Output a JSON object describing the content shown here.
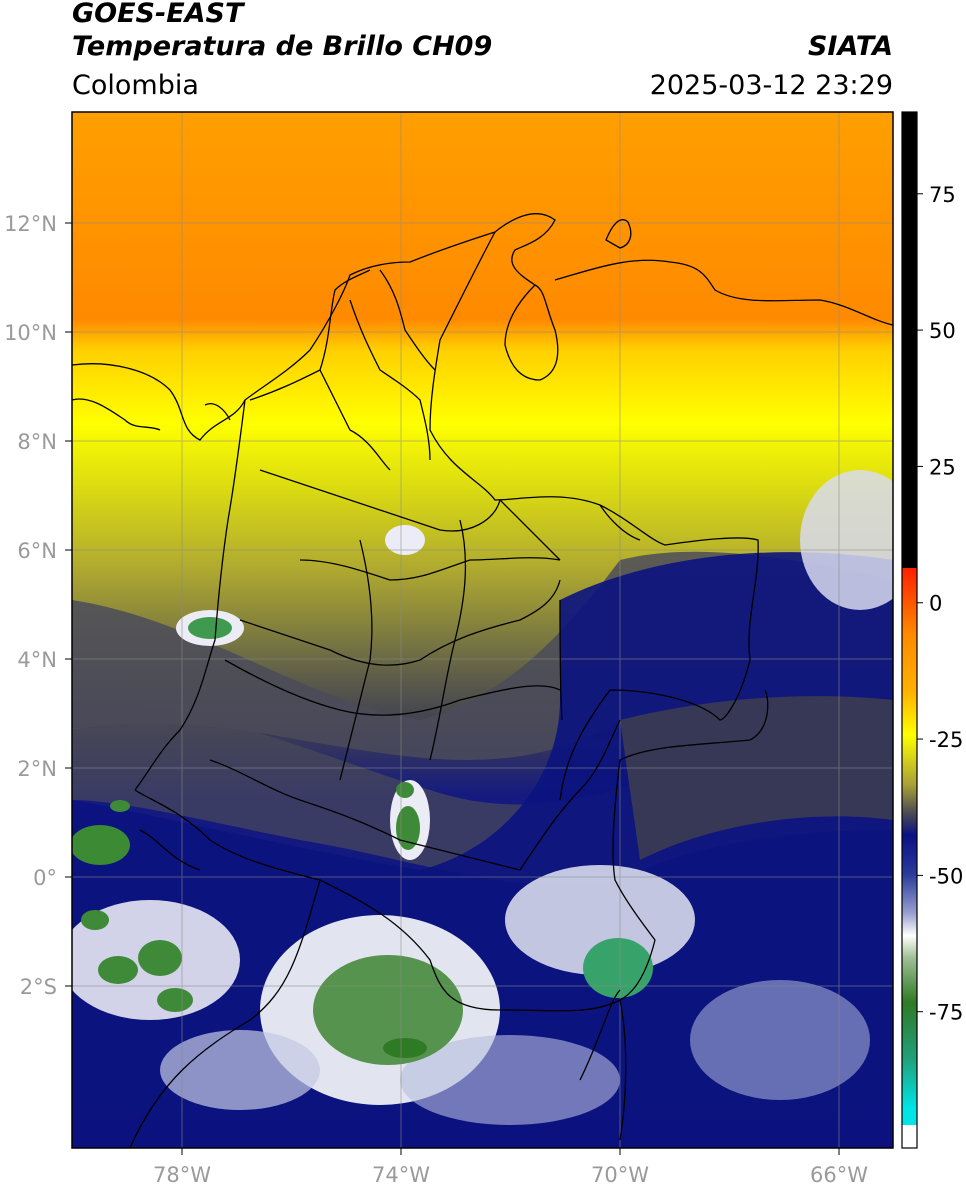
{
  "header": {
    "satellite": "GOES-EAST",
    "product": "Temperatura de Brillo CH09",
    "agency": "SIATA",
    "region": "Colombia",
    "datetime": "2025-03-12 23:29"
  },
  "map": {
    "lat_labels": [
      "12°N",
      "10°N",
      "8°N",
      "6°N",
      "4°N",
      "2°N",
      "0°",
      "2°S"
    ],
    "lon_labels": [
      "78°W",
      "74°W",
      "70°W",
      "66°W"
    ],
    "lon_range": [
      -80,
      -65
    ],
    "lat_range": [
      -4.7,
      14.3
    ]
  },
  "colorbar": {
    "tick_labels": [
      "75",
      "50",
      "25",
      "0",
      "-25",
      "-50",
      "-75"
    ],
    "range": [
      -100,
      90
    ],
    "colors": {
      "black": "#000000",
      "red": "#e81a00",
      "orange": "#ff9d00",
      "yellow": "#ffff00",
      "olive": "#b8b21e",
      "gray": "#4a4a52",
      "navy": "#0a1184",
      "white": "#ffffff",
      "green": "#2f7a25",
      "cyan": "#00e5e5"
    }
  }
}
